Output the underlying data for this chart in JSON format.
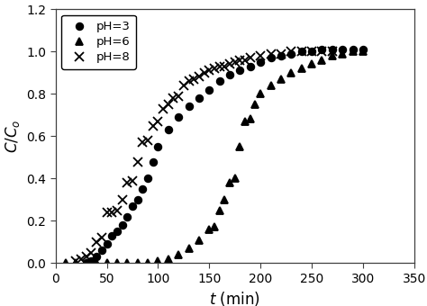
{
  "title": "",
  "xlabel": "t (min)",
  "ylabel": "C/C$_o$",
  "xlim": [
    0,
    350
  ],
  "ylim": [
    0,
    1.2
  ],
  "xticks": [
    0,
    50,
    100,
    150,
    200,
    250,
    300,
    350
  ],
  "yticks": [
    0.0,
    0.2,
    0.4,
    0.6,
    0.8,
    1.0,
    1.2
  ],
  "series": [
    {
      "label": "pH=3",
      "marker": "o",
      "markersize": 5.5,
      "x": [
        30,
        35,
        40,
        45,
        50,
        55,
        60,
        65,
        70,
        75,
        80,
        85,
        90,
        95,
        100,
        110,
        120,
        130,
        140,
        150,
        160,
        170,
        180,
        190,
        200,
        210,
        220,
        230,
        240,
        250,
        260,
        270,
        280,
        290,
        300
      ],
      "y": [
        0.0,
        0.01,
        0.03,
        0.06,
        0.09,
        0.13,
        0.15,
        0.18,
        0.22,
        0.27,
        0.3,
        0.35,
        0.4,
        0.48,
        0.55,
        0.63,
        0.69,
        0.74,
        0.78,
        0.82,
        0.86,
        0.89,
        0.91,
        0.93,
        0.95,
        0.97,
        0.98,
        0.99,
        1.0,
        1.0,
        1.01,
        1.01,
        1.01,
        1.01,
        1.01
      ]
    },
    {
      "label": "pH=6",
      "marker": "^",
      "markersize": 5.5,
      "x": [
        10,
        20,
        30,
        40,
        50,
        60,
        70,
        80,
        90,
        100,
        110,
        120,
        130,
        140,
        150,
        155,
        160,
        165,
        170,
        175,
        180,
        185,
        190,
        195,
        200,
        210,
        220,
        230,
        240,
        250,
        260,
        270,
        280,
        290,
        300
      ],
      "y": [
        0.0,
        0.0,
        0.0,
        0.0,
        0.0,
        0.0,
        0.0,
        0.0,
        0.0,
        0.01,
        0.02,
        0.04,
        0.07,
        0.11,
        0.16,
        0.17,
        0.25,
        0.3,
        0.38,
        0.4,
        0.55,
        0.67,
        0.68,
        0.75,
        0.8,
        0.84,
        0.87,
        0.9,
        0.92,
        0.94,
        0.96,
        0.98,
        0.99,
        1.0,
        1.0
      ]
    },
    {
      "label": "pH=8",
      "marker": "x",
      "markersize": 6.5,
      "x": [
        20,
        25,
        30,
        35,
        40,
        45,
        50,
        55,
        60,
        65,
        70,
        75,
        80,
        85,
        90,
        95,
        100,
        105,
        110,
        115,
        120,
        125,
        130,
        135,
        140,
        145,
        150,
        155,
        160,
        165,
        170,
        175,
        180,
        185,
        190,
        200,
        210,
        220,
        230,
        240,
        250,
        260,
        270
      ],
      "y": [
        0.01,
        0.02,
        0.03,
        0.05,
        0.1,
        0.12,
        0.24,
        0.24,
        0.25,
        0.3,
        0.38,
        0.39,
        0.48,
        0.57,
        0.58,
        0.65,
        0.67,
        0.73,
        0.75,
        0.78,
        0.79,
        0.84,
        0.86,
        0.87,
        0.88,
        0.9,
        0.91,
        0.92,
        0.93,
        0.93,
        0.94,
        0.95,
        0.96,
        0.96,
        0.97,
        0.98,
        0.99,
        0.99,
        1.0,
        1.0,
        1.0,
        1.0,
        1.0
      ]
    }
  ],
  "legend_loc": "upper left",
  "background_color": "#ffffff",
  "spine_color": "#404040",
  "tick_fontsize": 10,
  "label_fontsize": 12
}
